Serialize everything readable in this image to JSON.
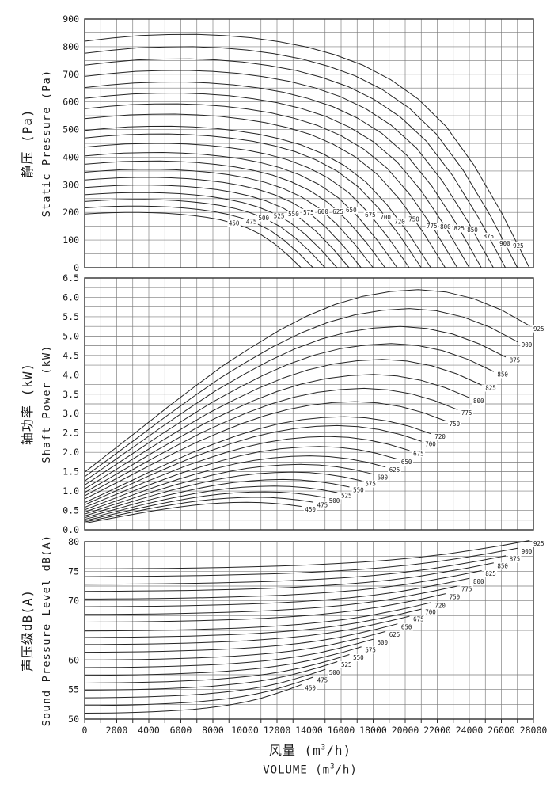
{
  "figure": {
    "background": "#ffffff",
    "grid_color": "#7a7a7a",
    "border_color": "#2f2f2f",
    "curve_color": "#242424",
    "text_color": "#1a1a1a"
  },
  "x_axis": {
    "min": 0,
    "max": 28000,
    "grid_step": 1000,
    "label_step": 2000,
    "tick_labels": [
      "0",
      "2000",
      "4000",
      "6000",
      "8000",
      "10000",
      "12000",
      "14000",
      "16000",
      "18000",
      "20000",
      "22000",
      "24000",
      "26000",
      "28000"
    ],
    "title_cn": {
      "pre": "风量 (m",
      "sup": "3",
      "post": "/h)"
    },
    "title_en": {
      "pre": "VOLUME (m",
      "sup": "3",
      "post": "/h)"
    }
  },
  "chart_data": {
    "type": "line",
    "x_unit": "m3/h",
    "speeds": [
      450,
      475,
      500,
      525,
      550,
      575,
      600,
      625,
      650,
      675,
      700,
      720,
      750,
      775,
      800,
      825,
      850,
      875,
      900,
      925
    ],
    "qmax": [
      13500,
      14250,
      15000,
      15750,
      16500,
      17250,
      18000,
      18750,
      19500,
      20250,
      21000,
      21600,
      22500,
      23250,
      24000,
      24750,
      25500,
      26250,
      27000,
      27750
    ],
    "q_fractions": [
      0,
      0.0625,
      0.125,
      0.1875,
      0.25,
      0.3125,
      0.375,
      0.4375,
      0.5,
      0.5625,
      0.625,
      0.6875,
      0.75,
      0.8125,
      0.875,
      0.9375,
      1
    ],
    "panels": [
      {
        "id": "static-pressure",
        "title_cn": "静压 (Pa)",
        "title_en": "Static Pressure (Pa)",
        "ylim": [
          0,
          900
        ],
        "grid_step": 50,
        "y_ticks": [
          {
            "v": 900,
            "t": "900"
          },
          {
            "v": 800,
            "t": "800"
          },
          {
            "v": 700,
            "t": "700"
          },
          {
            "v": 600,
            "t": "600"
          },
          {
            "v": 500,
            "t": "500"
          },
          {
            "v": 400,
            "t": "400"
          },
          {
            "v": 300,
            "t": "300"
          },
          {
            "v": 200,
            "t": "200"
          },
          {
            "v": 100,
            "t": "100"
          },
          {
            "v": 0,
            "t": "0"
          }
        ],
        "mode": "scale",
        "shape": [
          0.97,
          0.984,
          0.995,
          0.999,
          1.0,
          0.995,
          0.985,
          0.968,
          0.945,
          0.912,
          0.868,
          0.806,
          0.722,
          0.605,
          0.44,
          0.235,
          0
        ],
        "peaks": [
          200,
          223,
          247,
          272,
          299,
          327,
          356,
          386,
          417,
          450,
          484,
          512,
          556,
          593,
          632,
          672,
          714,
          756,
          800,
          845
        ],
        "label_mode": "on-curve",
        "label_q": [
          0.69,
          0.73,
          0.745,
          0.77,
          0.79,
          0.81,
          0.826,
          0.843,
          0.853,
          0.88,
          0.894,
          0.91,
          0.913,
          0.932,
          0.938,
          0.944,
          0.949,
          0.96,
          0.971,
          0.975
        ]
      },
      {
        "id": "shaft-power",
        "title_cn": "轴功率 (kW)",
        "title_en": "Shaft Power (kW)",
        "ylim": [
          0,
          6.5
        ],
        "grid_step": 0.25,
        "y_ticks": [
          {
            "v": 6.5,
            "t": "6.5"
          },
          {
            "v": 6.0,
            "t": "6.0"
          },
          {
            "v": 5.5,
            "t": "5.5"
          },
          {
            "v": 5.0,
            "t": "5.0"
          },
          {
            "v": 4.5,
            "t": "4.5"
          },
          {
            "v": 4.0,
            "t": "4.0"
          },
          {
            "v": 3.5,
            "t": "3.5"
          },
          {
            "v": 3.0,
            "t": "3.0"
          },
          {
            "v": 2.5,
            "t": "2.5"
          },
          {
            "v": 2.0,
            "t": "2.0"
          },
          {
            "v": 1.5,
            "t": "1.5"
          },
          {
            "v": 1.0,
            "t": "1.0"
          },
          {
            "v": 0.5,
            "t": "0.5"
          },
          {
            "v": 0.0,
            "t": "0.0"
          }
        ],
        "mode": "scale",
        "shape": [
          0.24,
          0.33,
          0.42,
          0.512,
          0.6,
          0.685,
          0.76,
          0.83,
          0.89,
          0.938,
          0.972,
          0.992,
          1.0,
          0.99,
          0.962,
          0.915,
          0.85
        ],
        "peaks": [
          0.71,
          0.84,
          0.98,
          1.13,
          1.3,
          1.49,
          1.69,
          1.91,
          2.15,
          2.41,
          2.69,
          2.92,
          3.31,
          3.65,
          4.01,
          4.4,
          4.81,
          5.25,
          5.71,
          6.2
        ],
        "label_mode": "curve-end"
      },
      {
        "id": "sound-pressure",
        "title_cn": "声压级dB(A)",
        "title_en": "Sound Pressure Level dB(A)",
        "ylim": [
          50,
          80
        ],
        "grid_step": 2.5,
        "y_ticks": [
          {
            "v": 80,
            "t": "80"
          },
          {
            "v": 75,
            "t": "75"
          },
          {
            "v": 70,
            "t": "70"
          },
          {
            "v": 60,
            "t": "60"
          },
          {
            "v": 55,
            "t": "55"
          },
          {
            "v": 50,
            "t": "50"
          }
        ],
        "mode": "add",
        "shape": [
          0,
          0.02,
          0.05,
          0.09,
          0.15,
          0.24,
          0.35,
          0.48,
          0.65,
          0.88,
          1.15,
          1.5,
          1.95,
          2.5,
          3.2,
          3.95,
          4.8
        ],
        "bases": [
          51,
          52.3,
          53.6,
          54.9,
          56.1,
          57.4,
          58.7,
          60,
          61.3,
          62.6,
          63.8,
          64.9,
          66.4,
          67.7,
          69,
          70.3,
          71.6,
          72.8,
          74.1,
          75.4
        ],
        "label_mode": "curve-end"
      }
    ]
  }
}
